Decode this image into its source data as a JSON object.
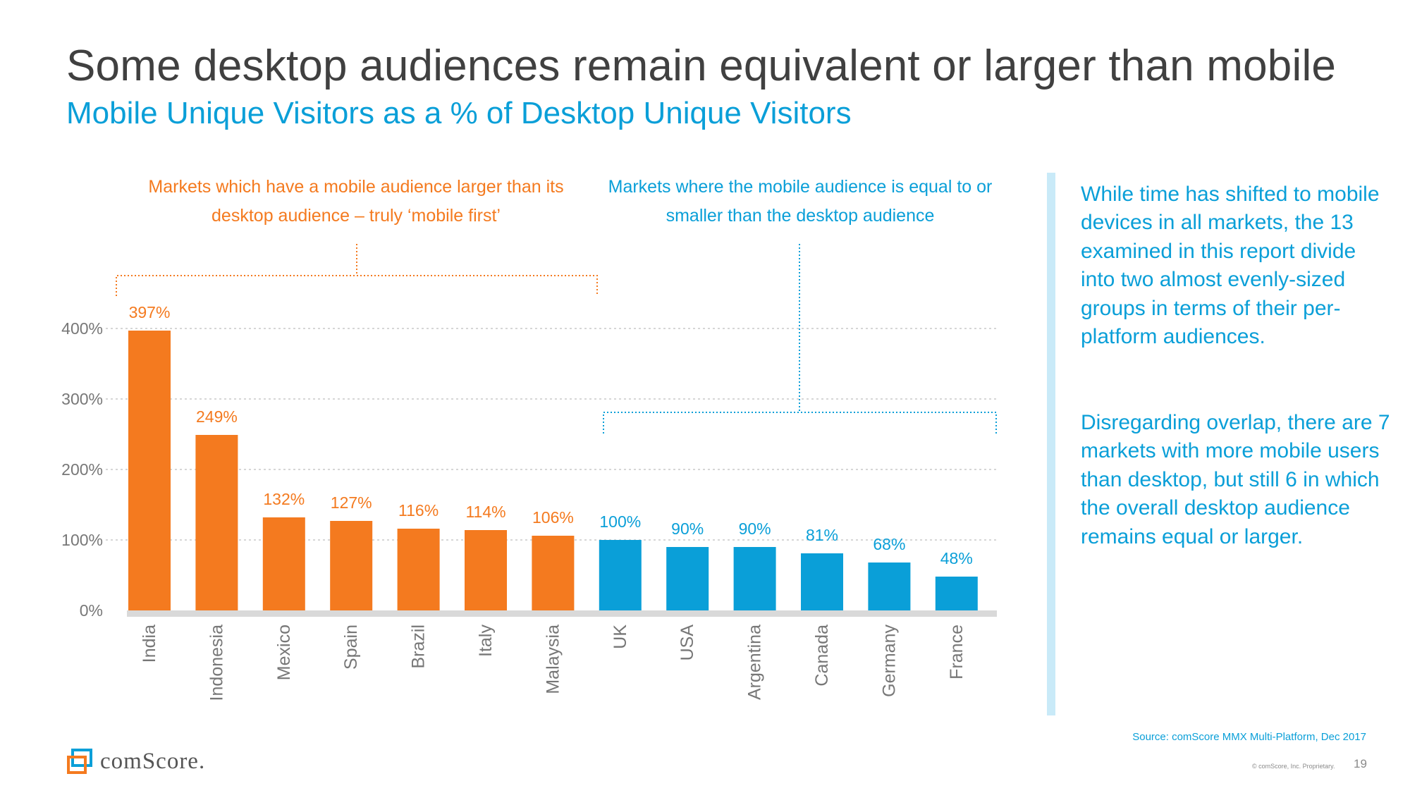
{
  "slide": {
    "title": "Some desktop audiences remain equivalent or larger than mobile",
    "subtitle": "Mobile Unique Visitors as a % of Desktop Unique Visitors",
    "page_number": "19"
  },
  "groups": {
    "mobile_first_label": "Markets which have a mobile audience larger than its desktop audience – truly ‘mobile first’",
    "desktop_label": "Markets where the mobile audience is equal to or smaller than the desktop audience"
  },
  "sidebar": {
    "paragraph1": "While time has shifted to mobile devices in all markets, the 13 examined in this report divide into two almost evenly-sized groups in terms of their per-platform audiences.",
    "paragraph2": "Disregarding overlap, there are 7 markets with more mobile users than desktop, but still 6 in which the overall desktop audience remains equal or larger."
  },
  "footer": {
    "source": "Source: comScore MMX Multi-Platform, Dec 2017",
    "copyright": "© comScore, Inc. Proprietary.",
    "logo_text": "comScore."
  },
  "colors": {
    "orange": "#f47a1f",
    "blue": "#0a9fd8",
    "axis": "#d9d9d9",
    "grid": "#c8c8c8",
    "tick": "#777777"
  },
  "chart_data": {
    "type": "bar",
    "title": "Mobile Unique Visitors as a % of Desktop Unique Visitors",
    "xlabel": "",
    "ylabel": "",
    "categories": [
      "India",
      "Indonesia",
      "Mexico",
      "Spain",
      "Brazil",
      "Italy",
      "Malaysia",
      "UK",
      "USA",
      "Argentina",
      "Canada",
      "Germany",
      "France"
    ],
    "values": [
      397,
      249,
      132,
      127,
      116,
      114,
      106,
      100,
      90,
      90,
      81,
      68,
      48
    ],
    "labels": [
      "397%",
      "249%",
      "132%",
      "127%",
      "116%",
      "114%",
      "106%",
      "100%",
      "90%",
      "90%",
      "81%",
      "68%",
      "48%"
    ],
    "groups": [
      "mobile_first",
      "mobile_first",
      "mobile_first",
      "mobile_first",
      "mobile_first",
      "mobile_first",
      "mobile_first",
      "desktop",
      "desktop",
      "desktop",
      "desktop",
      "desktop",
      "desktop"
    ],
    "yticks": [
      0,
      100,
      200,
      300,
      400
    ],
    "ytick_labels": [
      "0%",
      "100%",
      "200%",
      "300%",
      "400%"
    ],
    "ylim": [
      0,
      400
    ],
    "grid": true,
    "legend": "none"
  }
}
